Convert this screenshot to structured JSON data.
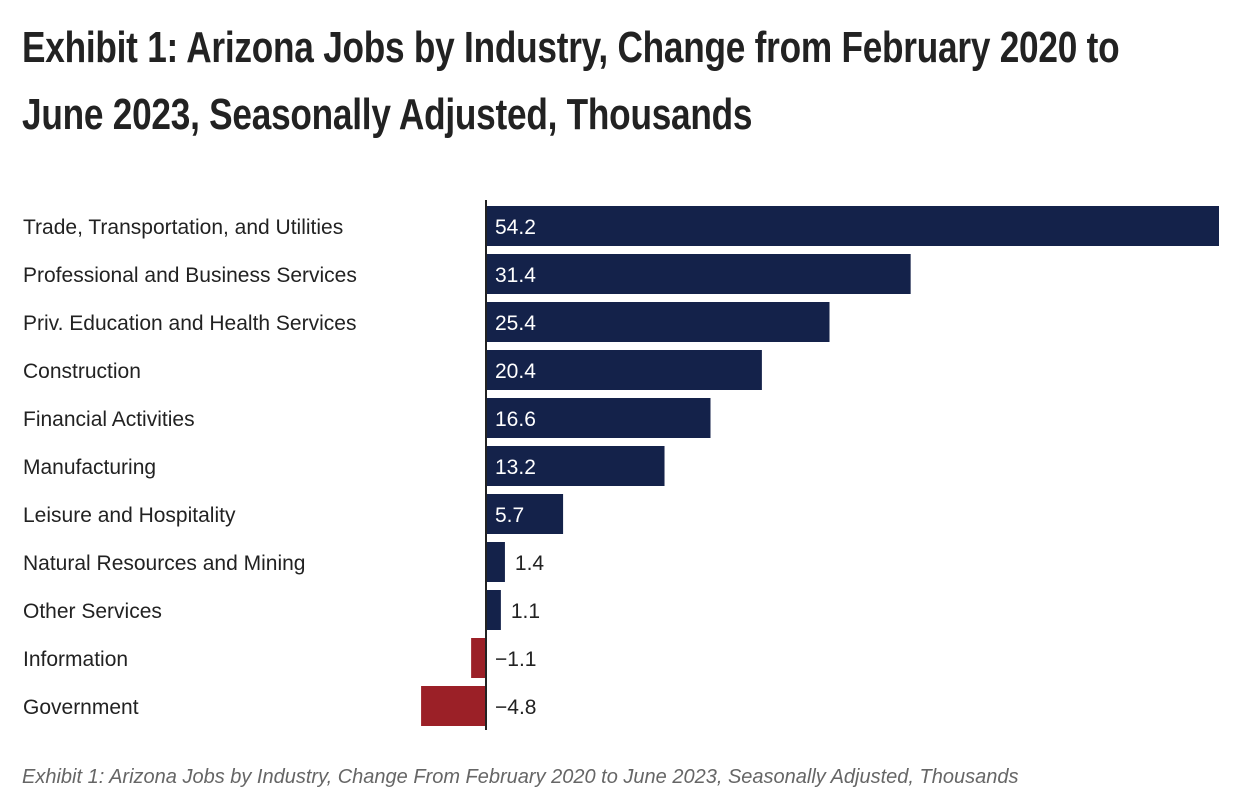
{
  "title": "Exhibit 1: Arizona Jobs by Industry, Change from February 2020 to June 2023, Seasonally Adjusted, Thousands",
  "caption": "Exhibit 1: Arizona Jobs by Industry, Change From February 2020 to June 2023, Seasonally Adjusted, Thousands",
  "chart_data": {
    "type": "bar",
    "orientation": "horizontal",
    "categories": [
      "Trade, Transportation, and Utilities",
      "Professional and Business Services",
      "Priv. Education and Health Services",
      "Construction",
      "Financial Activities",
      "Manufacturing",
      "Leisure and Hospitality",
      "Natural Resources and Mining",
      "Other Services",
      "Information",
      "Government"
    ],
    "values": [
      54.2,
      31.4,
      25.4,
      20.4,
      16.6,
      13.2,
      5.7,
      1.4,
      1.1,
      -1.1,
      -4.8
    ],
    "value_labels": [
      "54.2",
      "31.4",
      "25.4",
      "20.4",
      "16.6",
      "13.2",
      "5.7",
      "1.4",
      "1.1",
      "−1.1",
      "−4.8"
    ],
    "xlim": [
      -4.8,
      54.2
    ],
    "grid": false,
    "colors": {
      "positive": "#14224a",
      "negative": "#9b2027"
    }
  }
}
